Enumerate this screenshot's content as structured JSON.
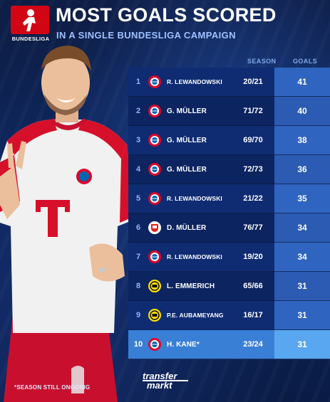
{
  "header": {
    "logo_text": "BUNDESLIGA",
    "title": "MOST GOALS SCORED",
    "subtitle": "IN A SINGLE BUNDESLIGA CAMPAIGN"
  },
  "table": {
    "col_season": "SEASON",
    "col_goals": "GOALS",
    "rows": [
      {
        "rank": "1",
        "club": "bayern",
        "name": "R. LEWANDOWSKI",
        "season": "20/21",
        "goals": "41"
      },
      {
        "rank": "2",
        "club": "bayern",
        "name": "G. MÜLLER",
        "season": "71/72",
        "goals": "40"
      },
      {
        "rank": "3",
        "club": "bayern",
        "name": "G. MÜLLER",
        "season": "69/70",
        "goals": "38"
      },
      {
        "rank": "4",
        "club": "bayern",
        "name": "G. MÜLLER",
        "season": "72/73",
        "goals": "36"
      },
      {
        "rank": "5",
        "club": "bayern",
        "name": "R. LEWANDOWSKI",
        "season": "21/22",
        "goals": "35"
      },
      {
        "rank": "6",
        "club": "cologne",
        "name": "D. MÜLLER",
        "season": "76/77",
        "goals": "34"
      },
      {
        "rank": "7",
        "club": "bayern",
        "name": "R. LEWANDOWSKI",
        "season": "19/20",
        "goals": "34"
      },
      {
        "rank": "8",
        "club": "dortmund",
        "name": "L. EMMERICH",
        "season": "65/66",
        "goals": "31"
      },
      {
        "rank": "9",
        "club": "dortmund",
        "name": "P.E. AUBAMEYANG",
        "season": "16/17",
        "goals": "31"
      },
      {
        "rank": "10",
        "club": "bayern",
        "name": "H. KANE*",
        "season": "23/24",
        "goals": "31"
      }
    ]
  },
  "footer": {
    "note": "*SEASON STILL ONGOING",
    "brand_top": "transfer",
    "brand_bottom": "markt"
  },
  "colors": {
    "bundesliga_red": "#d20515",
    "bayern_red": "#dc052d",
    "bayern_blue": "#0066b2",
    "dortmund_yellow": "#fde100",
    "cologne_red": "#e32219",
    "highlight_row": "#3a7fd6"
  },
  "icons": {
    "bayern": "bayern-crest-icon",
    "dortmund": "dortmund-crest-icon",
    "cologne": "cologne-crest-icon"
  }
}
